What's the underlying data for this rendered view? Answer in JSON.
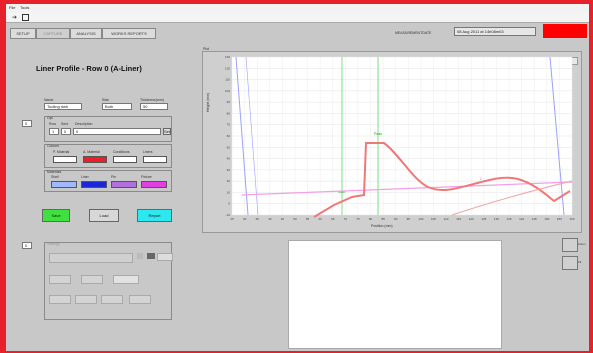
{
  "window": {
    "menu": [
      "File",
      "Tools"
    ],
    "tabs": [
      "SETUP",
      "CAPTURE",
      "ANALYSIS",
      "WORKS REPORTS"
    ],
    "active_tab_index": 1,
    "header_field_label": "MEASUREMENTDATE",
    "header_date_value": "08 Aug 2011 at 14h08m03",
    "colors": {
      "frame": "#e8202a",
      "bg": "#c8c8c8",
      "alarm": "#ff0000"
    }
  },
  "left": {
    "title": "Liner Profile - Row 0 (A-Liner)",
    "row_index": "0",
    "name_label": "Name",
    "name_value": "Tooling dwh",
    "side_label": "Side",
    "side_value": "Both",
    "thickness_label": "Thickness(mm)",
    "thickness_value": "50",
    "group1": {
      "label": "Opt",
      "sub_labels": [
        "Row",
        "Sect",
        "Description"
      ],
      "values": [
        "1",
        "0",
        "0"
      ],
      "button": "Set"
    },
    "group2": {
      "label": "Colours",
      "sub_labels": [
        "P. Material",
        "A. Material",
        "Conditions",
        "Liners"
      ],
      "colors": [
        "#ffffff",
        "#e8202a",
        "#ffffff",
        "#ffffff"
      ]
    },
    "group3": {
      "label": "Materials",
      "sub_labels": [
        "Shell",
        "Liner",
        "Pin",
        "Fixture"
      ],
      "colors": [
        "#a0b8ff",
        "#1a28d8",
        "#b070e0",
        "#e040e0"
      ]
    },
    "buttons": {
      "save": "Save",
      "load": "Load",
      "report": "Report"
    },
    "button_colors": {
      "save": "#3fe03f",
      "load": "#d8d8d8",
      "report": "#2ee8f0"
    },
    "settings_index": "0",
    "settings_label": "Settings"
  },
  "chart": {
    "label": "Plot",
    "legend": "ROW 0 A-Liner",
    "legend_color": "#e8202a",
    "ylabel": "Height (mm)",
    "xlabel": "Position (mm)",
    "y_ticks": [
      "130",
      "120",
      "110",
      "100",
      "90",
      "80",
      "70",
      "60",
      "50",
      "40",
      "30",
      "20",
      "10",
      "0",
      "-10"
    ],
    "x_ticks": [
      "25",
      "30",
      "35",
      "40",
      "45",
      "50",
      "55",
      "60",
      "65",
      "70",
      "75",
      "80",
      "85",
      "90",
      "95",
      "100",
      "105",
      "110",
      "115",
      "120",
      "125",
      "130",
      "135",
      "140",
      "145",
      "150",
      "155",
      "160"
    ],
    "annotations": [
      "Start",
      "1",
      "Peak"
    ]
  },
  "right_controls": {
    "labels": [
      "Zoom",
      "Fit"
    ]
  }
}
